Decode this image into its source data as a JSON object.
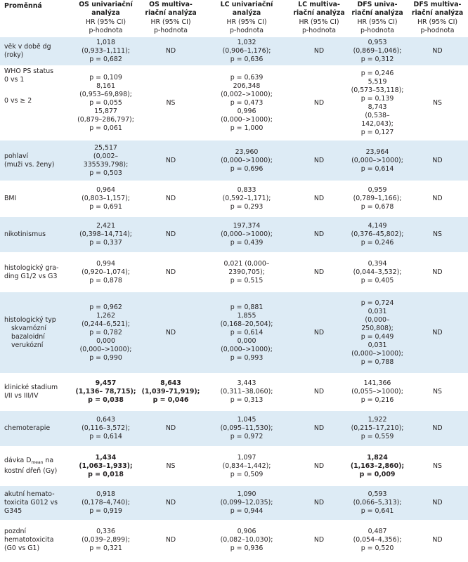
{
  "header": {
    "variable": "Proměnná",
    "columns": [
      {
        "title_l1": "OS  univariační",
        "title_l2": "analýza",
        "sub_l1": "HR (95% CI)",
        "sub_l2": "p-hodnota"
      },
      {
        "title_l1": "OS multiva-",
        "title_l2": "riační analýza",
        "sub_l1": "HR (95% CI)",
        "sub_l2": "p-hodnota"
      },
      {
        "title_l1": "LC univariační",
        "title_l2": "analýza",
        "sub_l1": "HR (95% CI)",
        "sub_l2": "p-hodnota"
      },
      {
        "title_l1": "LC multiva-",
        "title_l2": "riační analýza",
        "sub_l1": "HR (95% CI)",
        "sub_l2": "p-hodnota"
      },
      {
        "title_l1": "DFS univa-",
        "title_l2": "riační analýza",
        "sub_l1": "HR (95% CI)",
        "sub_l2": "p-hodnota"
      },
      {
        "title_l1": "DFS multiva-",
        "title_l2": "riační analýza",
        "sub_l1": "HR (95% CI)",
        "sub_l2": "p-hodnota"
      }
    ]
  },
  "rows": {
    "vek": {
      "label": [
        "věk v době dg",
        "(roky)"
      ],
      "os_uni": [
        "1,018",
        "(0,933–1,111);",
        "p = 0,682"
      ],
      "os_multi": "ND",
      "lc_uni": [
        "1,032",
        "(0,906–1,176);",
        "p = 0,636"
      ],
      "lc_multi": "ND",
      "dfs_uni": [
        "0,953",
        "(0,869–1,046);",
        "p = 0,312"
      ],
      "dfs_multi": "ND"
    },
    "who": {
      "label": [
        "WHO PS status",
        "0 vs 1",
        "0 vs ≥ 2"
      ],
      "os_uni": [
        "p = 0,109",
        "8,161",
        "(0,953–69,898);",
        "p = 0,055",
        "15,877",
        "(0,879–286,797);",
        "p = 0,061"
      ],
      "os_multi": "NS",
      "lc_uni": [
        "p = 0,639",
        "206,348",
        "(0,002–>1000);",
        "p = 0,473",
        "0,996",
        "(0,000–>1000);",
        "p = 1,000"
      ],
      "lc_multi": "ND",
      "dfs_uni": [
        "p = 0,246",
        "5,519",
        "(0,573–53,118);",
        "p = 0,139",
        "8,743",
        "(0,538–142,043);",
        "p = 0,127"
      ],
      "dfs_multi": "NS"
    },
    "pohlavi": {
      "label": [
        "pohlaví",
        "(muži vs. ženy)"
      ],
      "os_uni": [
        "25,517",
        "(0,002–",
        "335539,798);",
        "p = 0,503"
      ],
      "os_multi": "ND",
      "lc_uni": [
        "23,960",
        "(0,000–>1000);",
        "p = 0,696"
      ],
      "lc_multi": "ND",
      "dfs_uni": [
        "23,964",
        "(0,000–>1000);",
        "p = 0,614"
      ],
      "dfs_multi": "ND"
    },
    "bmi": {
      "label": [
        "BMI"
      ],
      "os_uni": [
        "0,964",
        "(0,803–1,157);",
        "p = 0,691"
      ],
      "os_multi": "ND",
      "lc_uni": [
        "0,833",
        "(0,592–1,171);",
        "p = 0,293"
      ],
      "lc_multi": "ND",
      "dfs_uni": [
        "0,959",
        "(0,789–1,166);",
        "p = 0,678"
      ],
      "dfs_multi": "ND"
    },
    "nikotinismus": {
      "label": [
        "nikotinismus"
      ],
      "os_uni": [
        "2,421",
        "(0,398–14,714);",
        "p = 0,337"
      ],
      "os_multi": "ND",
      "lc_uni": [
        "197,374",
        "(0,000–>1000);",
        "p = 0,439"
      ],
      "lc_multi": "ND",
      "dfs_uni": [
        "4,149",
        "(0,376–45,802);",
        "p = 0,246"
      ],
      "dfs_multi": "NS"
    },
    "grading": {
      "label": [
        "histologický gra-",
        "ding G1/2 vs G3"
      ],
      "os_uni": [
        "0,994",
        "(0,920–1,074);",
        "p = 0,878"
      ],
      "os_multi": "ND",
      "lc_uni": [
        "0,021 (0,000–",
        "2390,705);",
        "p = 0,515"
      ],
      "lc_multi": "ND",
      "dfs_uni": [
        "0,394",
        "(0,044–3,532);",
        "p = 0,405"
      ],
      "dfs_multi": "ND"
    },
    "typ": {
      "label": [
        "histologický typ",
        "skvamózní",
        "bazaloidní",
        "verukózní"
      ],
      "os_uni": [
        "p = 0,962",
        "1,262",
        "(0,244–6,521);",
        "p = 0,782",
        "0,000",
        "(0,000–>1000);",
        "p = 0,990"
      ],
      "os_multi": "ND",
      "lc_uni": [
        "p = 0,881",
        "1,855",
        "(0,168–20,504);",
        "p = 0,614",
        "0,000",
        "(0,000–>1000);",
        "p = 0,993"
      ],
      "lc_multi": "ND",
      "dfs_uni": [
        "p = 0,724",
        "0,031",
        "(0,000–250,808);",
        "p = 0,449",
        "0,031",
        "(0,000–>1000);",
        "p = 0,788"
      ],
      "dfs_multi": "ND"
    },
    "stadium": {
      "label": [
        "klinické stadium",
        "I/II vs III/IV"
      ],
      "os_uni": [
        "9,457",
        "(1,136– 78,715);",
        "p = 0,038"
      ],
      "os_multi": [
        "8,643",
        "(1,039–71,919);",
        "p = 0,046"
      ],
      "lc_uni": [
        "3,443",
        "(0,311–38,060);",
        "p = 0,313"
      ],
      "lc_multi": "ND",
      "dfs_uni": [
        "141,366",
        "(0,055–>1000);",
        "p = 0,216"
      ],
      "dfs_multi": "NS"
    },
    "chemoterapie": {
      "label": [
        "chemoterapie"
      ],
      "os_uni": [
        "0,643",
        "(0,116–3,572);",
        "p = 0,614"
      ],
      "os_multi": "ND",
      "lc_uni": [
        "1,045",
        "(0,095–11,530);",
        "p = 0,972"
      ],
      "lc_multi": "ND",
      "dfs_uni": [
        "1,922",
        "(0,215–17,210);",
        "p = 0,559"
      ],
      "dfs_multi": "ND"
    },
    "davka": {
      "label_a": "dávka D",
      "label_sub": "mean",
      "label_b": " na",
      "label_l2": "kostní dřeň (Gy)",
      "os_uni": [
        "1,434",
        "(1,063–1,933);",
        "p = 0,018"
      ],
      "os_multi": "NS",
      "lc_uni": [
        "1,097",
        "(0,834–1,442);",
        "p = 0,509"
      ],
      "lc_multi": "ND",
      "dfs_uni": [
        "1,824",
        "(1,163–2,860);",
        "p = 0,009"
      ],
      "dfs_multi": "NS"
    },
    "akutni": {
      "label": [
        "akutní hemato-",
        "toxicita G012 vs",
        "G345"
      ],
      "os_uni": [
        "0,918",
        "(0,178–4,740);",
        "p = 0,919"
      ],
      "os_multi": "ND",
      "lc_uni": [
        "1,090",
        "(0,099–12,035);",
        "p = 0,944"
      ],
      "lc_multi": "ND",
      "dfs_uni": [
        "0,593",
        "(0,066–5,313);",
        "p = 0,641"
      ],
      "dfs_multi": "ND"
    },
    "pozdni": {
      "label": [
        "pozdní",
        "hematotoxicita",
        "(G0 vs G1)"
      ],
      "os_uni": [
        "0,336",
        "(0,039–2,899);",
        "p = 0,321"
      ],
      "os_multi": "ND",
      "lc_uni": [
        "0,906",
        "(0,082–10,030);",
        "p = 0,936"
      ],
      "lc_multi": "ND",
      "dfs_uni": [
        "0,487",
        "(0,054–4,356);",
        "p = 0,520"
      ],
      "dfs_multi": "ND"
    }
  }
}
